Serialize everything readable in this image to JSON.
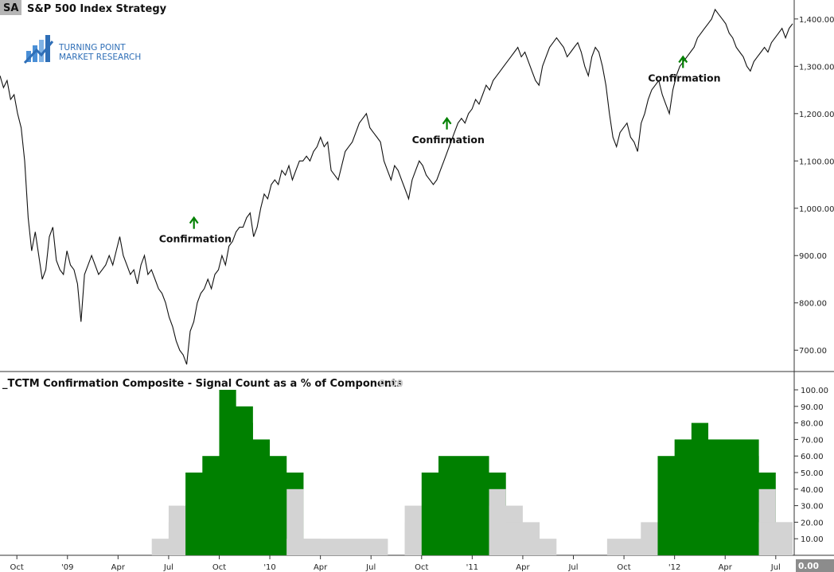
{
  "header": {
    "symbol": "SA",
    "title": "S&P 500 Index  Strategy"
  },
  "logo": {
    "line1": "TURNING POINT",
    "line2": "MARKET RESEARCH"
  },
  "lower_panel": {
    "title": "_TCTM Confirmation Composite - Signal Count as a % of Components",
    "value": "0.00",
    "last_value_badge": "0.00"
  },
  "colors": {
    "price_line": "#111111",
    "confirmed_bar": "#008000",
    "unconfirmed_bar": "#d3d3d3",
    "arrow": "#008000"
  },
  "chart_data": [
    {
      "type": "line",
      "series": [
        {
          "values": [
            1280,
            1255,
            1270,
            1230,
            1240,
            1200,
            1170,
            1100,
            980,
            910,
            950,
            900,
            850,
            870,
            940,
            960,
            890,
            870,
            860,
            910,
            880,
            870,
            840,
            760,
            860,
            880,
            900,
            880,
            860,
            870,
            880,
            900,
            880,
            910,
            940,
            900,
            880,
            860,
            870,
            840,
            880,
            900,
            860,
            870,
            850,
            830,
            820,
            800,
            770,
            750,
            720,
            700,
            690,
            670,
            740,
            760,
            800,
            820,
            830,
            850,
            830,
            860,
            870,
            900,
            880,
            920,
            930,
            950,
            960,
            960,
            980,
            990,
            940,
            960,
            1000,
            1030,
            1020,
            1050,
            1060,
            1050,
            1080,
            1070,
            1090,
            1060,
            1080,
            1100,
            1100,
            1110,
            1100,
            1120,
            1130,
            1150,
            1130,
            1140,
            1080,
            1070,
            1060,
            1090,
            1120,
            1130,
            1140,
            1160,
            1180,
            1190,
            1200,
            1170,
            1160,
            1150,
            1140,
            1100,
            1080,
            1060,
            1090,
            1080,
            1060,
            1040,
            1020,
            1060,
            1080,
            1100,
            1090,
            1070,
            1060,
            1050,
            1060,
            1080,
            1100,
            1120,
            1140,
            1160,
            1180,
            1190,
            1180,
            1200,
            1210,
            1230,
            1220,
            1240,
            1260,
            1250,
            1270,
            1280,
            1290,
            1300,
            1310,
            1320,
            1330,
            1340,
            1320,
            1330,
            1310,
            1290,
            1270,
            1260,
            1300,
            1320,
            1340,
            1350,
            1360,
            1350,
            1340,
            1320,
            1330,
            1340,
            1350,
            1330,
            1300,
            1280,
            1320,
            1340,
            1330,
            1300,
            1260,
            1200,
            1150,
            1130,
            1160,
            1170,
            1180,
            1150,
            1140,
            1120,
            1180,
            1200,
            1230,
            1250,
            1260,
            1270,
            1240,
            1220,
            1200,
            1250,
            1280,
            1300,
            1310,
            1320,
            1330,
            1340,
            1360,
            1370,
            1380,
            1390,
            1400,
            1420,
            1410,
            1400,
            1390,
            1370,
            1360,
            1340,
            1330,
            1320,
            1300,
            1290,
            1310,
            1320,
            1330,
            1340,
            1330,
            1350,
            1360,
            1370,
            1380,
            1360,
            1380,
            1390
          ]
        }
      ],
      "date_range": [
        "Sep 2008",
        "Aug 2012"
      ],
      "ylim": [
        660,
        1430
      ],
      "y_ticks": [
        "1,400.00",
        "1,300.00",
        "1,200.00",
        "1,100.00",
        "1,000.00",
        "900.00",
        "800.00",
        "700.00"
      ],
      "annotations": [
        {
          "text": "Confirmation",
          "date": "Aug 2009",
          "value": 980
        },
        {
          "text": "Confirmation",
          "date": "Nov 2010",
          "value": 1190
        },
        {
          "text": "Confirmation",
          "date": "Jan 2012",
          "value": 1320
        }
      ]
    },
    {
      "type": "bar",
      "x_ticks": [
        "Oct",
        "'09",
        "Apr",
        "Jul",
        "Oct",
        "'10",
        "Apr",
        "Jul",
        "Oct",
        "'11",
        "Apr",
        "Jul",
        "Oct",
        "'12",
        "Apr",
        "Jul"
      ],
      "ylim": [
        0,
        100
      ],
      "y_ticks": [
        "100.00",
        "90.00",
        "80.00",
        "70.00",
        "60.00",
        "50.00",
        "40.00",
        "30.00",
        "20.00",
        "10.00"
      ],
      "blocks": [
        {
          "start": "Jun 2009",
          "end": "Jul 2009",
          "value": 10,
          "status": "unconfirmed"
        },
        {
          "start": "Jul 2009",
          "end": "Jul 2009",
          "value": 20,
          "status": "unconfirmed"
        },
        {
          "start": "Jul 2009",
          "end": "Aug 2009",
          "value": 30,
          "status": "unconfirmed"
        },
        {
          "start": "Aug 2009",
          "end": "Aug 2009",
          "value": 40,
          "status": "unconfirmed"
        },
        {
          "start": "Aug 2009",
          "end": "Sep 2009",
          "value": 50,
          "status": "confirmed"
        },
        {
          "start": "Sep 2009",
          "end": "Oct 2009",
          "value": 60,
          "status": "confirmed"
        },
        {
          "start": "Oct 2009",
          "end": "Oct 2009",
          "value": 100,
          "status": "confirmed"
        },
        {
          "start": "Oct 2009",
          "end": "Nov 2009",
          "value": 90,
          "status": "confirmed"
        },
        {
          "start": "Nov 2009",
          "end": "Nov 2009",
          "value": 80,
          "status": "confirmed"
        },
        {
          "start": "Nov 2009",
          "end": "Dec 2009",
          "value": 70,
          "status": "confirmed"
        },
        {
          "start": "Dec 2009",
          "end": "Jan 2010",
          "value": 60,
          "status": "confirmed"
        },
        {
          "start": "Jan 2010",
          "end": "Feb 2010",
          "value": 50,
          "status": "confirmed"
        },
        {
          "start": "Feb 2010",
          "end": "Feb 2010",
          "value": 40,
          "status": "unconfirmed"
        },
        {
          "start": "Feb 2010",
          "end": "Mar 2010",
          "value": 10,
          "status": "unconfirmed"
        },
        {
          "start": "Mar 2010",
          "end": "Jul 2010",
          "value": 10,
          "status": "unconfirmed"
        },
        {
          "start": "Sep 2010",
          "end": "Sep 2010",
          "value": 20,
          "status": "unconfirmed"
        },
        {
          "start": "Sep 2010",
          "end": "Oct 2010",
          "value": 30,
          "status": "unconfirmed"
        },
        {
          "start": "Oct 2010",
          "end": "Oct 2010",
          "value": 40,
          "status": "unconfirmed"
        },
        {
          "start": "Oct 2010",
          "end": "Nov 2010",
          "value": 50,
          "status": "confirmed"
        },
        {
          "start": "Nov 2010",
          "end": "Jan 2011",
          "value": 60,
          "status": "confirmed"
        },
        {
          "start": "Jan 2011",
          "end": "Feb 2011",
          "value": 50,
          "status": "confirmed"
        },
        {
          "start": "Feb 2011",
          "end": "Feb 2011",
          "value": 40,
          "status": "unconfirmed"
        },
        {
          "start": "Feb 2011",
          "end": "Mar 2011",
          "value": 30,
          "status": "unconfirmed"
        },
        {
          "start": "Mar 2011",
          "end": "Apr 2011",
          "value": 20,
          "status": "unconfirmed"
        },
        {
          "start": "Apr 2011",
          "end": "May 2011",
          "value": 10,
          "status": "unconfirmed"
        },
        {
          "start": "Sep 2011",
          "end": "Nov 2011",
          "value": 10,
          "status": "unconfirmed"
        },
        {
          "start": "Nov 2011",
          "end": "Dec 2011",
          "value": 20,
          "status": "unconfirmed"
        },
        {
          "start": "Dec 2011",
          "end": "Dec 2011",
          "value": 30,
          "status": "unconfirmed"
        },
        {
          "start": "Dec 2011",
          "end": "Dec 2011",
          "value": 40,
          "status": "unconfirmed"
        },
        {
          "start": "Dec 2011",
          "end": "Jan 2012",
          "value": 60,
          "status": "confirmed"
        },
        {
          "start": "Jan 2012",
          "end": "Feb 2012",
          "value": 70,
          "status": "confirmed"
        },
        {
          "start": "Feb 2012",
          "end": "Feb 2012",
          "value": 80,
          "status": "confirmed"
        },
        {
          "start": "Feb 2012",
          "end": "May 2012",
          "value": 70,
          "status": "confirmed"
        },
        {
          "start": "May 2012",
          "end": "May 2012",
          "value": 60,
          "status": "confirmed"
        },
        {
          "start": "May 2012",
          "end": "Jun 2012",
          "value": 50,
          "status": "confirmed"
        },
        {
          "start": "Jun 2012",
          "end": "Jun 2012",
          "value": 40,
          "status": "unconfirmed"
        },
        {
          "start": "Jun 2012",
          "end": "Jul 2012",
          "value": 20,
          "status": "unconfirmed"
        },
        {
          "start": "Jul 2012",
          "end": "Jul 2012",
          "value": 10,
          "status": "unconfirmed"
        },
        {
          "start": "Jul 2012",
          "end": "Aug 2012",
          "value": 20,
          "status": "unconfirmed"
        }
      ]
    }
  ]
}
